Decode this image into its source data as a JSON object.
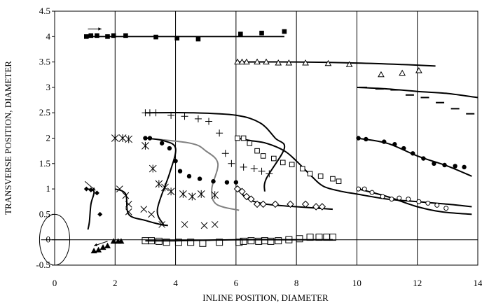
{
  "chart_data": {
    "type": "scatter",
    "title": "",
    "xlabel": "INLINE POSITION, DIAMETER",
    "ylabel": "TRANSVERSE POSITION, DIAMETER",
    "xlim": [
      0,
      14
    ],
    "ylim": [
      -0.5,
      4.5
    ],
    "xticks": [
      "0",
      "2",
      "4",
      "6",
      "8",
      "10",
      "12",
      "14"
    ],
    "yticks": [
      "-0.5",
      "0",
      "0.5",
      "1",
      "1.5",
      "2",
      "2.5",
      "3",
      "3.5",
      "4",
      "4.5"
    ],
    "grid": "vertical",
    "legend": "none",
    "cylinder": {
      "center": [
        0,
        0
      ],
      "radius": 0.5
    },
    "arrows": [
      {
        "from": [
          1.1,
          4.15
        ],
        "to": [
          1.55,
          4.15
        ]
      },
      {
        "from": [
          1.0,
          1.15
        ],
        "to": [
          1.35,
          0.97
        ]
      },
      {
        "from": [
          1.75,
          -0.03
        ],
        "to": [
          1.3,
          -0.12
        ]
      }
    ],
    "series": [
      {
        "marker": "square-filled",
        "color": "#000000",
        "points": [
          [
            1.05,
            4.0
          ],
          [
            1.2,
            4.02
          ],
          [
            1.4,
            4.02
          ],
          [
            1.75,
            4.0
          ],
          [
            1.95,
            4.02
          ],
          [
            2.35,
            4.02
          ],
          [
            3.35,
            3.99
          ],
          [
            4.05,
            3.97
          ],
          [
            4.75,
            3.95
          ],
          [
            6.15,
            4.05
          ],
          [
            6.85,
            4.07
          ],
          [
            7.6,
            4.1
          ]
        ]
      },
      {
        "marker": "triangle-open",
        "color": "#000000",
        "points": [
          [
            6.05,
            3.5
          ],
          [
            6.2,
            3.5
          ],
          [
            6.35,
            3.5
          ],
          [
            6.7,
            3.5
          ],
          [
            7.0,
            3.5
          ],
          [
            7.4,
            3.48
          ],
          [
            7.75,
            3.48
          ],
          [
            8.3,
            3.48
          ],
          [
            9.05,
            3.47
          ],
          [
            9.75,
            3.45
          ],
          [
            10.8,
            3.25
          ],
          [
            11.5,
            3.28
          ],
          [
            12.05,
            3.33
          ]
        ]
      },
      {
        "marker": "dash",
        "color": "#000000",
        "points": [
          [
            10.2,
            3.0
          ],
          [
            10.75,
            2.97
          ],
          [
            11.25,
            2.95
          ],
          [
            11.75,
            2.85
          ],
          [
            12.25,
            2.8
          ],
          [
            12.75,
            2.7
          ],
          [
            13.25,
            2.58
          ],
          [
            13.75,
            2.48
          ]
        ]
      },
      {
        "marker": "plus",
        "color": "#000000",
        "points": [
          [
            3.0,
            2.5
          ],
          [
            3.15,
            2.5
          ],
          [
            3.35,
            2.5
          ],
          [
            3.85,
            2.45
          ],
          [
            4.3,
            2.43
          ],
          [
            4.75,
            2.38
          ],
          [
            5.1,
            2.33
          ],
          [
            5.45,
            2.1
          ],
          [
            5.65,
            1.7
          ],
          [
            5.85,
            1.5
          ],
          [
            6.25,
            1.43
          ],
          [
            6.6,
            1.4
          ],
          [
            6.85,
            1.35
          ],
          [
            7.1,
            1.3
          ]
        ]
      },
      {
        "marker": "asterisk",
        "color": "#000000",
        "points": [
          [
            2.0,
            2.0
          ],
          [
            2.25,
            2.0
          ],
          [
            2.45,
            1.98
          ],
          [
            3.0,
            1.85
          ],
          [
            3.25,
            1.4
          ],
          [
            3.45,
            1.1
          ],
          [
            3.65,
            1.03
          ],
          [
            3.85,
            0.95
          ],
          [
            4.25,
            0.9
          ],
          [
            4.55,
            0.85
          ],
          [
            4.85,
            0.9
          ],
          [
            5.3,
            0.88
          ]
        ]
      },
      {
        "marker": "x",
        "color": "#000000",
        "points": [
          [
            2.15,
            1.0
          ],
          [
            2.35,
            0.87
          ],
          [
            2.45,
            0.7
          ],
          [
            2.45,
            0.55
          ],
          [
            2.95,
            0.6
          ],
          [
            3.2,
            0.5
          ],
          [
            3.55,
            0.3
          ],
          [
            4.3,
            0.3
          ],
          [
            4.95,
            0.28
          ],
          [
            5.3,
            0.3
          ]
        ]
      },
      {
        "marker": "circle-filled",
        "color": "#000000",
        "points": [
          [
            3.0,
            2.0
          ],
          [
            3.15,
            2.0
          ],
          [
            3.55,
            1.9
          ],
          [
            3.8,
            1.8
          ],
          [
            4.0,
            1.55
          ],
          [
            4.15,
            1.35
          ],
          [
            4.45,
            1.25
          ],
          [
            4.8,
            1.2
          ],
          [
            5.25,
            1.15
          ],
          [
            5.7,
            1.13
          ],
          [
            6.0,
            1.13
          ],
          [
            10.05,
            2.0
          ],
          [
            10.3,
            1.98
          ],
          [
            10.9,
            1.93
          ],
          [
            11.25,
            1.88
          ],
          [
            11.55,
            1.8
          ],
          [
            11.85,
            1.7
          ],
          [
            12.2,
            1.6
          ],
          [
            12.55,
            1.5
          ],
          [
            12.9,
            1.47
          ],
          [
            13.25,
            1.45
          ],
          [
            13.55,
            1.43
          ]
        ]
      },
      {
        "marker": "square-open",
        "color": "#000000",
        "points": [
          [
            6.05,
            2.0
          ],
          [
            6.25,
            2.0
          ],
          [
            6.45,
            1.9
          ],
          [
            6.7,
            1.75
          ],
          [
            6.9,
            1.65
          ],
          [
            7.25,
            1.6
          ],
          [
            7.55,
            1.52
          ],
          [
            7.85,
            1.48
          ],
          [
            8.2,
            1.4
          ],
          [
            8.45,
            1.3
          ],
          [
            8.8,
            1.25
          ],
          [
            9.2,
            1.2
          ],
          [
            9.4,
            1.15
          ]
        ]
      },
      {
        "marker": "diamond-open",
        "color": "#000000",
        "points": [
          [
            6.05,
            1.0
          ],
          [
            6.2,
            0.95
          ],
          [
            6.35,
            0.85
          ],
          [
            6.5,
            0.8
          ],
          [
            6.7,
            0.7
          ],
          [
            6.9,
            0.7
          ],
          [
            7.3,
            0.7
          ],
          [
            7.8,
            0.7
          ],
          [
            8.3,
            0.7
          ],
          [
            8.65,
            0.65
          ],
          [
            8.85,
            0.65
          ]
        ]
      },
      {
        "marker": "circle-open",
        "color": "#000000",
        "points": [
          [
            10.05,
            1.0
          ],
          [
            10.25,
            1.0
          ],
          [
            10.5,
            0.93
          ],
          [
            10.85,
            0.85
          ],
          [
            11.15,
            0.8
          ],
          [
            11.4,
            0.82
          ],
          [
            11.7,
            0.8
          ],
          [
            12.05,
            0.75
          ],
          [
            12.35,
            0.72
          ],
          [
            12.65,
            0.68
          ],
          [
            12.95,
            0.62
          ]
        ]
      },
      {
        "marker": "diamond-filled",
        "color": "#000000",
        "points": [
          [
            1.05,
            1.0
          ],
          [
            1.2,
            0.98
          ],
          [
            1.4,
            0.92
          ],
          [
            1.5,
            0.5
          ]
        ]
      },
      {
        "marker": "triangle-filled",
        "color": "#000000",
        "points": [
          [
            1.3,
            -0.22
          ],
          [
            1.45,
            -0.2
          ],
          [
            1.6,
            -0.15
          ],
          [
            1.75,
            -0.12
          ],
          [
            1.95,
            -0.03
          ],
          [
            2.1,
            -0.03
          ],
          [
            2.2,
            -0.03
          ]
        ]
      },
      {
        "marker": "square-open-large",
        "color": "#000000",
        "points": [
          [
            3.0,
            -0.02
          ],
          [
            3.2,
            -0.02
          ],
          [
            3.45,
            -0.03
          ],
          [
            3.7,
            -0.05
          ],
          [
            4.1,
            -0.05
          ],
          [
            4.5,
            -0.05
          ],
          [
            4.9,
            -0.07
          ],
          [
            5.45,
            -0.05
          ],
          [
            6.1,
            -0.05
          ],
          [
            6.25,
            -0.03
          ],
          [
            6.5,
            -0.02
          ],
          [
            6.75,
            -0.03
          ],
          [
            6.95,
            -0.02
          ],
          [
            7.15,
            -0.03
          ],
          [
            7.4,
            -0.02
          ],
          [
            7.75,
            0.0
          ],
          [
            8.1,
            0.02
          ],
          [
            8.45,
            0.05
          ],
          [
            8.75,
            0.05
          ],
          [
            9.0,
            0.05
          ],
          [
            9.2,
            0.05
          ]
        ]
      }
    ],
    "curves": [
      {
        "color": "#000000",
        "points": [
          [
            1.1,
            4.0
          ],
          [
            4.0,
            4.0
          ],
          [
            7.6,
            4.0
          ]
        ]
      },
      {
        "color": "#000000",
        "points": [
          [
            6.05,
            3.5
          ],
          [
            8.0,
            3.5
          ],
          [
            10.0,
            3.48
          ],
          [
            11.5,
            3.45
          ],
          [
            12.6,
            3.42
          ]
        ]
      },
      {
        "color": "#000000",
        "points": [
          [
            10.0,
            3.0
          ],
          [
            11.0,
            2.97
          ],
          [
            12.0,
            2.92
          ],
          [
            13.0,
            2.88
          ],
          [
            14.0,
            2.8
          ]
        ]
      },
      {
        "color": "#000000",
        "points": [
          [
            3.0,
            2.5
          ],
          [
            4.5,
            2.5
          ],
          [
            6.0,
            2.45
          ],
          [
            6.8,
            2.3
          ],
          [
            7.3,
            2.0
          ],
          [
            7.6,
            1.8
          ],
          [
            7.0,
            1.2
          ],
          [
            6.95,
            0.95
          ]
        ]
      },
      {
        "color": "#808080",
        "points": [
          [
            3.0,
            2.0
          ],
          [
            4.5,
            1.9
          ],
          [
            5.0,
            1.75
          ],
          [
            5.4,
            1.5
          ],
          [
            5.2,
            1.0
          ],
          [
            5.35,
            0.7
          ],
          [
            6.1,
            0.58
          ]
        ]
      },
      {
        "color": "#000000",
        "points": [
          [
            3.0,
            2.0
          ],
          [
            3.6,
            1.95
          ],
          [
            4.0,
            1.8
          ],
          [
            3.8,
            1.3
          ],
          [
            3.4,
            0.6
          ],
          [
            3.6,
            0.3
          ]
        ]
      },
      {
        "color": "#000000",
        "points": [
          [
            6.05,
            2.0
          ],
          [
            6.5,
            1.95
          ],
          [
            7.0,
            1.9
          ],
          [
            7.6,
            1.75
          ],
          [
            8.0,
            1.55
          ],
          [
            8.5,
            1.25
          ],
          [
            8.9,
            1.05
          ],
          [
            9.5,
            0.95
          ],
          [
            10.0,
            0.9
          ],
          [
            11.0,
            0.8
          ],
          [
            12.0,
            0.75
          ],
          [
            13.0,
            0.7
          ],
          [
            13.8,
            0.65
          ]
        ]
      },
      {
        "color": "#000000",
        "points": [
          [
            10.0,
            2.0
          ],
          [
            11.0,
            1.9
          ],
          [
            12.0,
            1.65
          ],
          [
            13.0,
            1.45
          ],
          [
            13.8,
            1.25
          ]
        ]
      },
      {
        "color": "#000000",
        "points": [
          [
            6.05,
            1.0
          ],
          [
            6.4,
            0.8
          ],
          [
            7.0,
            0.7
          ],
          [
            8.0,
            0.65
          ],
          [
            9.2,
            0.6
          ]
        ]
      },
      {
        "color": "#000000",
        "points": [
          [
            10.05,
            1.0
          ],
          [
            11.0,
            0.85
          ],
          [
            12.0,
            0.65
          ],
          [
            12.8,
            0.55
          ],
          [
            13.8,
            0.5
          ]
        ]
      },
      {
        "color": "#000000",
        "points": [
          [
            2.0,
            1.0
          ],
          [
            2.35,
            0.9
          ],
          [
            2.45,
            0.5
          ],
          [
            3.0,
            0.38
          ],
          [
            3.5,
            0.3
          ],
          [
            3.75,
            0.28
          ]
        ]
      },
      {
        "color": "#000000",
        "points": [
          [
            1.05,
            1.0
          ],
          [
            1.3,
            0.95
          ],
          [
            1.2,
            0.7
          ],
          [
            1.15,
            0.35
          ],
          [
            1.1,
            0.2
          ]
        ]
      },
      {
        "color": "#000000",
        "points": [
          [
            3.0,
            -0.02
          ],
          [
            4.0,
            -0.02
          ],
          [
            6.0,
            0.0
          ],
          [
            8.0,
            0.0
          ],
          [
            9.2,
            0.0
          ]
        ]
      }
    ]
  }
}
